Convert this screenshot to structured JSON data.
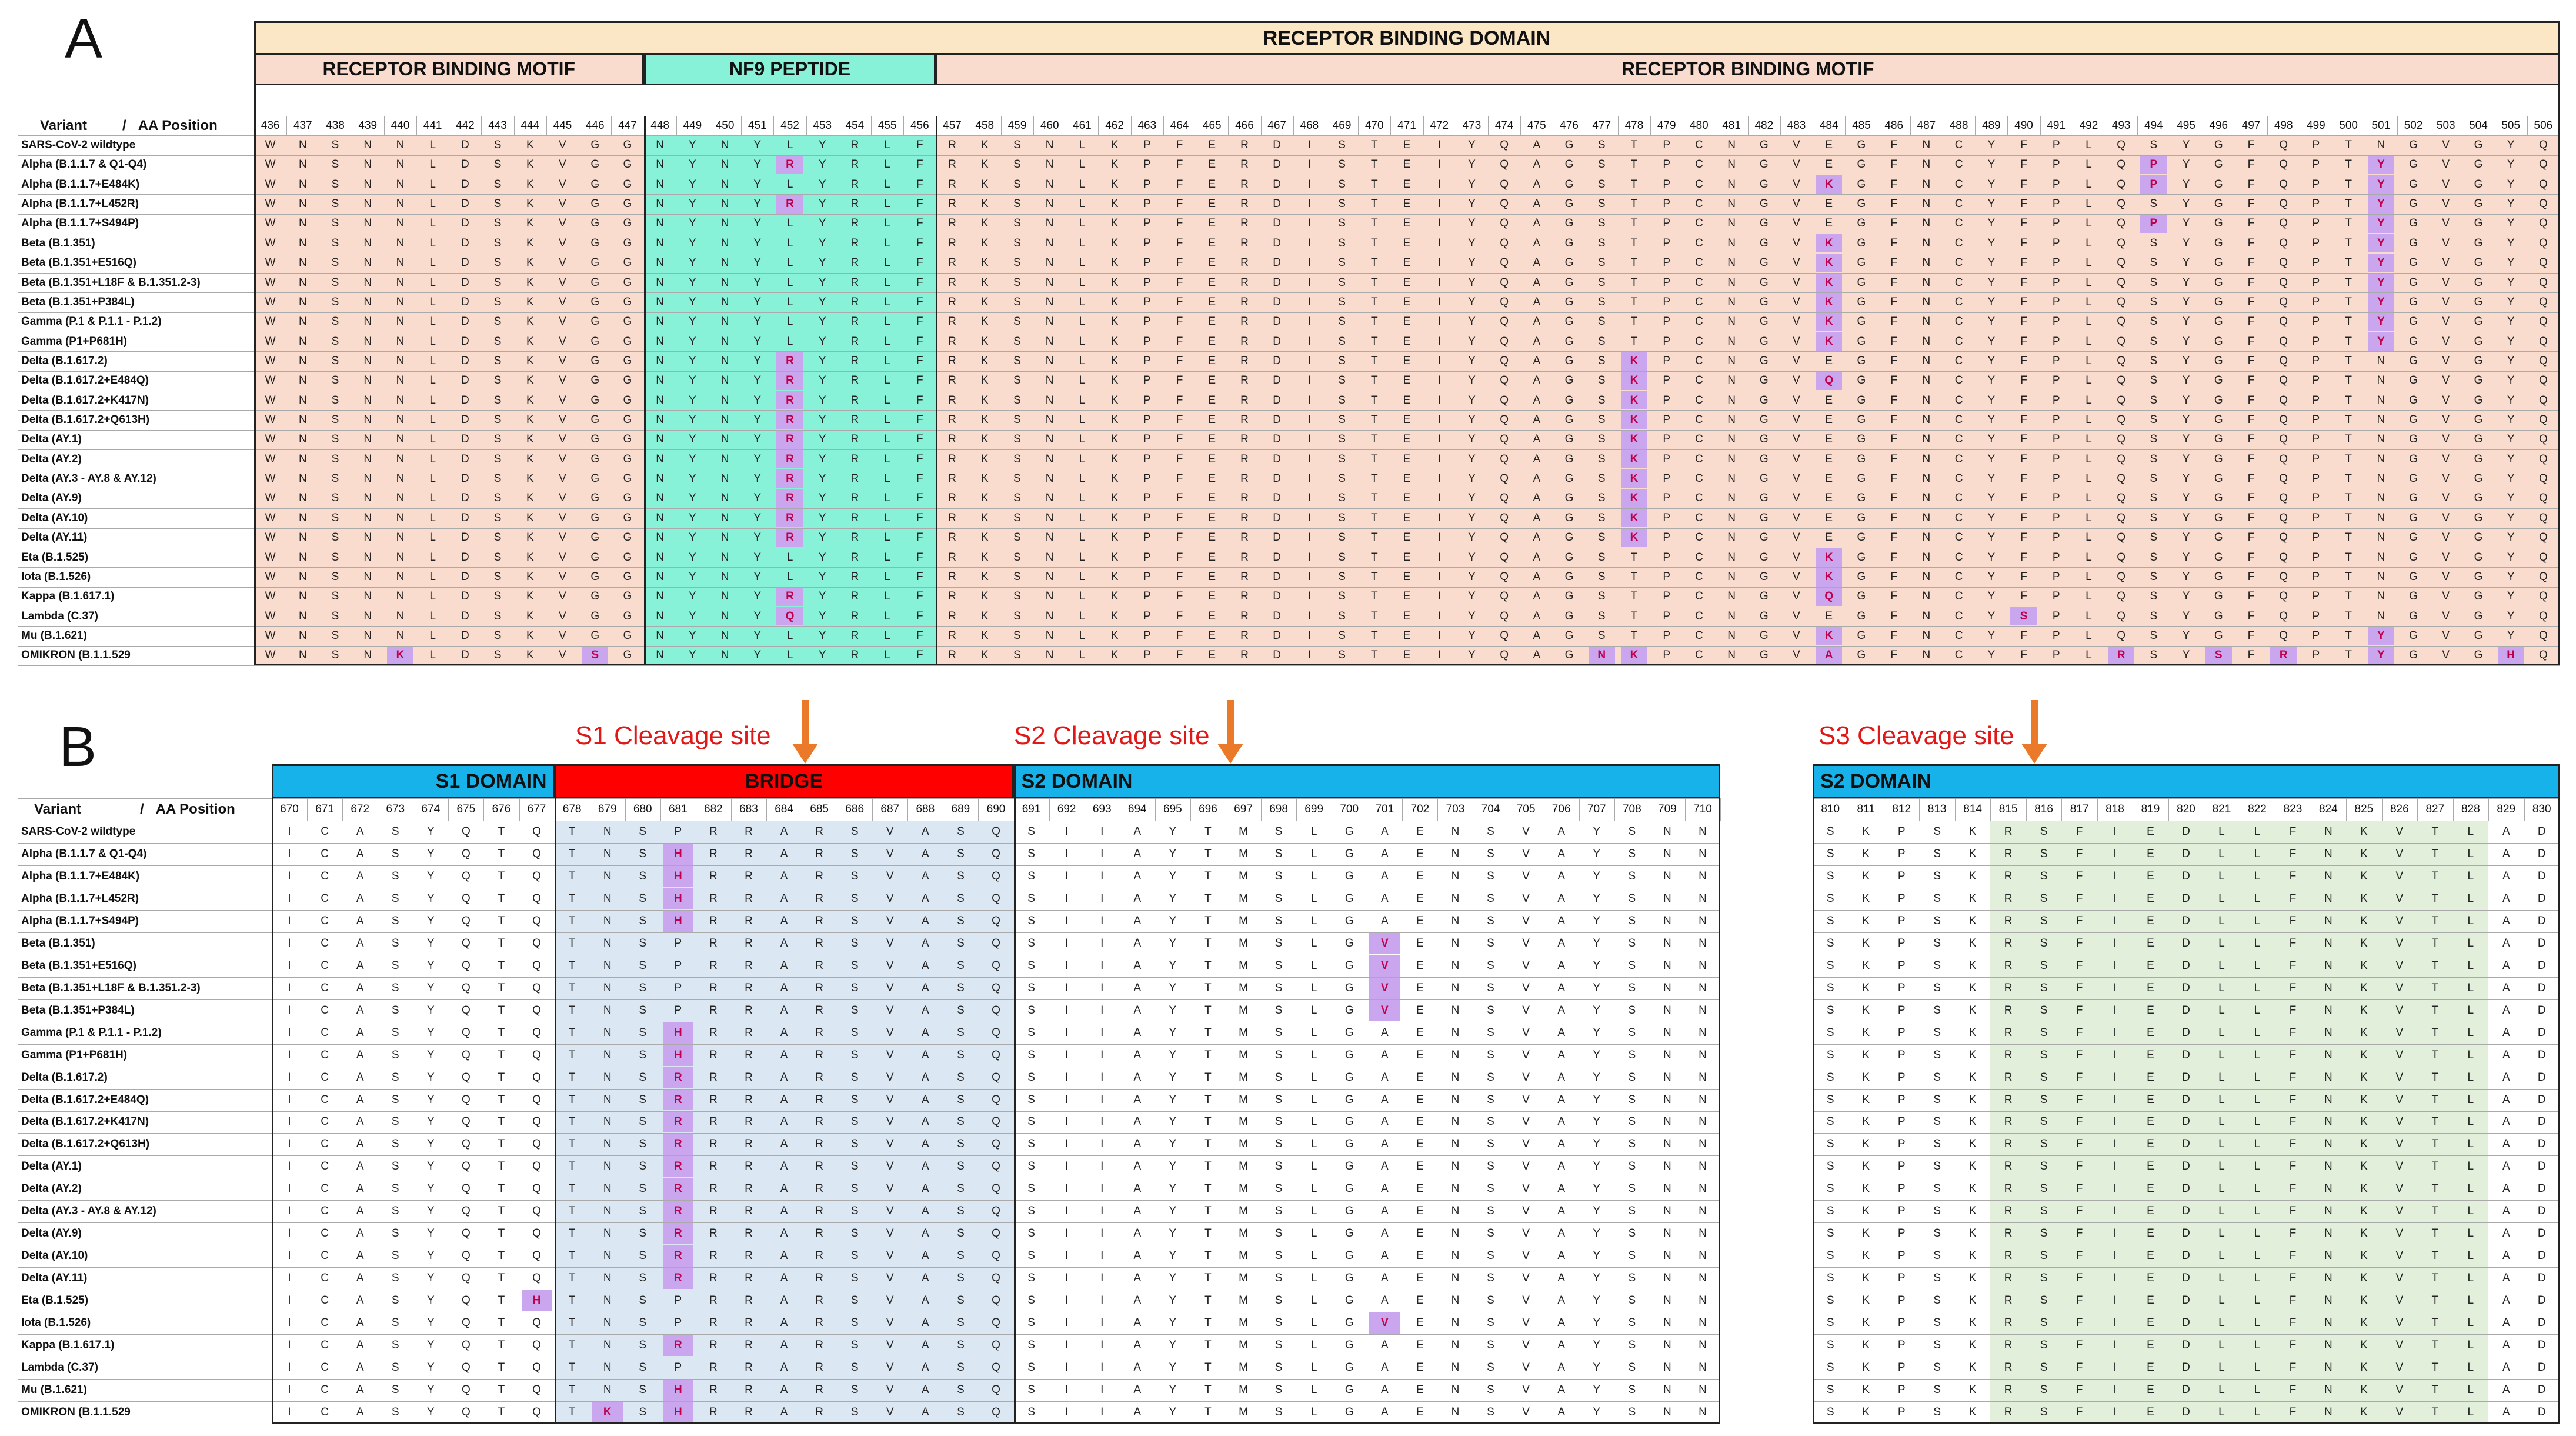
{
  "panel_a": {
    "label": "A",
    "title": "RECEPTOR BINDING DOMAIN",
    "segments": [
      "RECEPTOR BINDING MOTIF",
      "NF9 PEPTIDE",
      "RECEPTOR BINDING MOTIF"
    ],
    "header_variant": "Variant",
    "header_sep": "/",
    "header_pos": "AA Position",
    "positions": [
      "436",
      "437",
      "438",
      "439",
      "440",
      "441",
      "442",
      "443",
      "444",
      "445",
      "446",
      "447",
      "448",
      "449",
      "450",
      "451",
      "452",
      "453",
      "454",
      "455",
      "456",
      "457",
      "458",
      "459",
      "460",
      "461",
      "462",
      "463",
      "464",
      "465",
      "466",
      "467",
      "468",
      "469",
      "470",
      "471",
      "472",
      "473",
      "474",
      "475",
      "476",
      "477",
      "478",
      "479",
      "480",
      "481",
      "482",
      "483",
      "484",
      "485",
      "486",
      "487",
      "488",
      "489",
      "490",
      "491",
      "492",
      "493",
      "494",
      "495",
      "496",
      "497",
      "498",
      "499",
      "500",
      "501",
      "502",
      "503",
      "504",
      "505",
      "506"
    ],
    "base_sequence": "WNSNNLDSKVGGNYNYLYRLFRKSNLKPFERDISTEIYQAGSTPCNGVEGFNCYFPLQSYGFQPTNGVGYQ",
    "rows": [
      {
        "variant": "SARS-CoV-2 wildtype",
        "mutations": []
      },
      {
        "variant": "Alpha (B.1.1.7 & Q1-Q4)",
        "mutations": [
          {
            "pos": "452",
            "aa": "R"
          },
          {
            "pos": "494",
            "aa": "P"
          },
          {
            "pos": "501",
            "aa": "Y"
          }
        ]
      },
      {
        "variant": "Alpha (B.1.1.7+E484K)",
        "mutations": [
          {
            "pos": "484",
            "aa": "K"
          },
          {
            "pos": "494",
            "aa": "P"
          },
          {
            "pos": "501",
            "aa": "Y"
          }
        ]
      },
      {
        "variant": "Alpha (B.1.1.7+L452R)",
        "mutations": [
          {
            "pos": "452",
            "aa": "R"
          },
          {
            "pos": "501",
            "aa": "Y"
          }
        ]
      },
      {
        "variant": "Alpha (B.1.1.7+S494P)",
        "mutations": [
          {
            "pos": "494",
            "aa": "P"
          },
          {
            "pos": "501",
            "aa": "Y"
          }
        ]
      },
      {
        "variant": "Beta (B.1.351)",
        "mutations": [
          {
            "pos": "484",
            "aa": "K"
          },
          {
            "pos": "501",
            "aa": "Y"
          }
        ]
      },
      {
        "variant": "Beta (B.1.351+E516Q)",
        "mutations": [
          {
            "pos": "484",
            "aa": "K"
          },
          {
            "pos": "501",
            "aa": "Y"
          }
        ]
      },
      {
        "variant": "Beta (B.1.351+L18F & B.1.351.2-3)",
        "mutations": [
          {
            "pos": "484",
            "aa": "K"
          },
          {
            "pos": "501",
            "aa": "Y"
          }
        ]
      },
      {
        "variant": "Beta (B.1.351+P384L)",
        "mutations": [
          {
            "pos": "484",
            "aa": "K"
          },
          {
            "pos": "501",
            "aa": "Y"
          }
        ]
      },
      {
        "variant": "Gamma (P.1 & P.1.1 - P.1.2)",
        "mutations": [
          {
            "pos": "484",
            "aa": "K"
          },
          {
            "pos": "501",
            "aa": "Y"
          }
        ]
      },
      {
        "variant": "Gamma (P1+P681H)",
        "mutations": [
          {
            "pos": "484",
            "aa": "K"
          },
          {
            "pos": "501",
            "aa": "Y"
          }
        ]
      },
      {
        "variant": "Delta (B.1.617.2)",
        "mutations": [
          {
            "pos": "452",
            "aa": "R"
          },
          {
            "pos": "478",
            "aa": "K"
          }
        ]
      },
      {
        "variant": "Delta (B.1.617.2+E484Q)",
        "mutations": [
          {
            "pos": "452",
            "aa": "R"
          },
          {
            "pos": "478",
            "aa": "K"
          },
          {
            "pos": "484",
            "aa": "Q"
          }
        ]
      },
      {
        "variant": "Delta (B.1.617.2+K417N)",
        "mutations": [
          {
            "pos": "452",
            "aa": "R"
          },
          {
            "pos": "478",
            "aa": "K"
          }
        ]
      },
      {
        "variant": "Delta (B.1.617.2+Q613H)",
        "mutations": [
          {
            "pos": "452",
            "aa": "R"
          },
          {
            "pos": "478",
            "aa": "K"
          }
        ]
      },
      {
        "variant": "Delta (AY.1)",
        "mutations": [
          {
            "pos": "452",
            "aa": "R"
          },
          {
            "pos": "478",
            "aa": "K"
          }
        ]
      },
      {
        "variant": "Delta (AY.2)",
        "mutations": [
          {
            "pos": "452",
            "aa": "R"
          },
          {
            "pos": "478",
            "aa": "K"
          }
        ]
      },
      {
        "variant": "Delta (AY.3 - AY.8 & AY.12)",
        "mutations": [
          {
            "pos": "452",
            "aa": "R"
          },
          {
            "pos": "478",
            "aa": "K"
          }
        ]
      },
      {
        "variant": "Delta (AY.9)",
        "mutations": [
          {
            "pos": "452",
            "aa": "R"
          },
          {
            "pos": "478",
            "aa": "K"
          }
        ]
      },
      {
        "variant": "Delta (AY.10)",
        "mutations": [
          {
            "pos": "452",
            "aa": "R"
          },
          {
            "pos": "478",
            "aa": "K"
          }
        ]
      },
      {
        "variant": "Delta (AY.11)",
        "mutations": [
          {
            "pos": "452",
            "aa": "R"
          },
          {
            "pos": "478",
            "aa": "K"
          }
        ]
      },
      {
        "variant": "Eta (B.1.525)",
        "mutations": [
          {
            "pos": "484",
            "aa": "K"
          }
        ]
      },
      {
        "variant": "Iota (B.1.526)",
        "mutations": [
          {
            "pos": "484",
            "aa": "K"
          }
        ]
      },
      {
        "variant": "Kappa (B.1.617.1)",
        "mutations": [
          {
            "pos": "452",
            "aa": "R"
          },
          {
            "pos": "484",
            "aa": "Q"
          }
        ]
      },
      {
        "variant": "Lambda (C.37)",
        "mutations": [
          {
            "pos": "452",
            "aa": "Q"
          },
          {
            "pos": "490",
            "aa": "S"
          }
        ]
      },
      {
        "variant": "Mu (B.1.621)",
        "mutations": [
          {
            "pos": "484",
            "aa": "K"
          },
          {
            "pos": "501",
            "aa": "Y"
          }
        ]
      },
      {
        "variant": "OMIKRON (B.1.1.529",
        "mutations": [
          {
            "pos": "440",
            "aa": "K"
          },
          {
            "pos": "446",
            "aa": "S"
          },
          {
            "pos": "477",
            "aa": "N"
          },
          {
            "pos": "478",
            "aa": "K"
          },
          {
            "pos": "484",
            "aa": "A"
          },
          {
            "pos": "493",
            "aa": "R"
          },
          {
            "pos": "496",
            "aa": "S"
          },
          {
            "pos": "498",
            "aa": "R"
          },
          {
            "pos": "501",
            "aa": "Y"
          },
          {
            "pos": "505",
            "aa": "H"
          }
        ]
      }
    ]
  },
  "panel_b": {
    "label": "B",
    "cleavage_sites": [
      "S1 Cleavage site",
      "S2 Cleavage site",
      "S3 Cleavage site"
    ],
    "segments": [
      "S1 DOMAIN",
      "BRIDGE",
      "S2 DOMAIN"
    ],
    "header_variant": "Variant",
    "header_sep": "/",
    "header_pos": "AA Position",
    "positions": [
      "670",
      "671",
      "672",
      "673",
      "674",
      "675",
      "676",
      "677",
      "678",
      "679",
      "680",
      "681",
      "682",
      "683",
      "684",
      "685",
      "686",
      "687",
      "688",
      "689",
      "690",
      "691",
      "692",
      "693",
      "694",
      "695",
      "696",
      "697",
      "698",
      "699",
      "700",
      "701",
      "702",
      "703",
      "704",
      "705",
      "706",
      "707",
      "708",
      "709",
      "710"
    ],
    "base_sequence": "ICASYQTQTNSPRRARSVASQSIIAYTMSLGAENSVAYSNN",
    "rows": [
      {
        "variant": "SARS-CoV-2 wildtype",
        "mutations": []
      },
      {
        "variant": "Alpha (B.1.1.7 & Q1-Q4)",
        "mutations": [
          {
            "pos": "681",
            "aa": "H"
          }
        ]
      },
      {
        "variant": "Alpha (B.1.1.7+E484K)",
        "mutations": [
          {
            "pos": "681",
            "aa": "H"
          }
        ]
      },
      {
        "variant": "Alpha (B.1.1.7+L452R)",
        "mutations": [
          {
            "pos": "681",
            "aa": "H"
          }
        ]
      },
      {
        "variant": "Alpha (B.1.1.7+S494P)",
        "mutations": [
          {
            "pos": "681",
            "aa": "H"
          }
        ]
      },
      {
        "variant": "Beta (B.1.351)",
        "mutations": [
          {
            "pos": "701",
            "aa": "V"
          }
        ]
      },
      {
        "variant": "Beta (B.1.351+E516Q)",
        "mutations": [
          {
            "pos": "701",
            "aa": "V"
          }
        ]
      },
      {
        "variant": "Beta (B.1.351+L18F & B.1.351.2-3)",
        "mutations": [
          {
            "pos": "701",
            "aa": "V"
          }
        ]
      },
      {
        "variant": "Beta (B.1.351+P384L)",
        "mutations": [
          {
            "pos": "701",
            "aa": "V"
          }
        ]
      },
      {
        "variant": "Gamma (P.1 & P.1.1 - P.1.2)",
        "mutations": [
          {
            "pos": "681",
            "aa": "H"
          }
        ]
      },
      {
        "variant": "Gamma (P1+P681H)",
        "mutations": [
          {
            "pos": "681",
            "aa": "H"
          }
        ]
      },
      {
        "variant": "Delta (B.1.617.2)",
        "mutations": [
          {
            "pos": "681",
            "aa": "R"
          }
        ]
      },
      {
        "variant": "Delta (B.1.617.2+E484Q)",
        "mutations": [
          {
            "pos": "681",
            "aa": "R"
          }
        ]
      },
      {
        "variant": "Delta (B.1.617.2+K417N)",
        "mutations": [
          {
            "pos": "681",
            "aa": "R"
          }
        ]
      },
      {
        "variant": "Delta (B.1.617.2+Q613H)",
        "mutations": [
          {
            "pos": "681",
            "aa": "R"
          }
        ]
      },
      {
        "variant": "Delta (AY.1)",
        "mutations": [
          {
            "pos": "681",
            "aa": "R"
          }
        ]
      },
      {
        "variant": "Delta (AY.2)",
        "mutations": [
          {
            "pos": "681",
            "aa": "R"
          }
        ]
      },
      {
        "variant": "Delta (AY.3 - AY.8 & AY.12)",
        "mutations": [
          {
            "pos": "681",
            "aa": "R"
          }
        ]
      },
      {
        "variant": "Delta (AY.9)",
        "mutations": [
          {
            "pos": "681",
            "aa": "R"
          }
        ]
      },
      {
        "variant": "Delta (AY.10)",
        "mutations": [
          {
            "pos": "681",
            "aa": "R"
          }
        ]
      },
      {
        "variant": "Delta (AY.11)",
        "mutations": [
          {
            "pos": "681",
            "aa": "R"
          }
        ]
      },
      {
        "variant": "Eta (B.1.525)",
        "mutations": [
          {
            "pos": "677",
            "aa": "H"
          }
        ]
      },
      {
        "variant": "Iota (B.1.526)",
        "mutations": [
          {
            "pos": "701",
            "aa": "V"
          }
        ]
      },
      {
        "variant": "Kappa (B.1.617.1)",
        "mutations": [
          {
            "pos": "681",
            "aa": "R"
          }
        ]
      },
      {
        "variant": "Lambda (C.37)",
        "mutations": []
      },
      {
        "variant": "Mu (B.1.621)",
        "mutations": [
          {
            "pos": "681",
            "aa": "H"
          }
        ]
      },
      {
        "variant": "OMIKRON (B.1.1.529",
        "mutations": [
          {
            "pos": "679",
            "aa": "K"
          },
          {
            "pos": "681",
            "aa": "H"
          }
        ]
      }
    ]
  },
  "panel_c": {
    "segment": "S2 DOMAIN",
    "positions": [
      "810",
      "811",
      "812",
      "813",
      "814",
      "815",
      "816",
      "817",
      "818",
      "819",
      "820",
      "821",
      "822",
      "823",
      "824",
      "825",
      "826",
      "827",
      "828",
      "829",
      "830"
    ],
    "base_sequence": "SKPSKRSFIEDLLFNKVTLAD"
  },
  "colors": {
    "rbd_banner": "#fbe7c6",
    "rbm": "#f9dccd",
    "nf9": "#88f2d8",
    "s_domain": "#18b2ea",
    "bridge": "#ff0000",
    "bridge_cells": "#dbe8f4",
    "fusion_cells": "#e2efda",
    "mutation_highlight": "#c9a6ee",
    "mutation_text": "#c0004a",
    "annotation_red": "#e01818",
    "arrow_orange": "#ea7a2a"
  }
}
